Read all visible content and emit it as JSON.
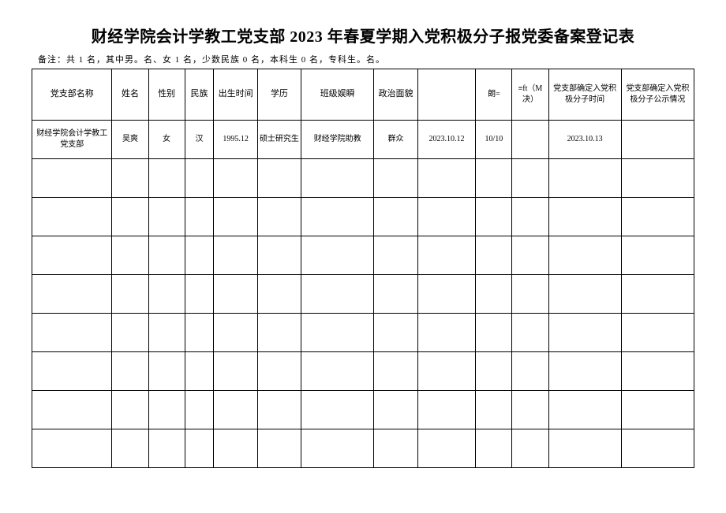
{
  "title": "财经学院会计学教工党支部 2023 年春夏学期入党积极分子报党委备案登记表",
  "note": "备注：共 1 名，其中男。名、女 1 名，少数民族 0 名，本科生 0 名，专科生。名。",
  "headers": {
    "branch": "党支部名称",
    "name": "姓名",
    "sex": "性别",
    "ethnic": "民族",
    "birth": "出生时间",
    "edu": "学历",
    "class": "班级娱瞬",
    "politics": "政治面貌",
    "col9": "",
    "lang": "朗=",
    "ft": "≡ft（M决）",
    "confirmTime": "党支部确定入党积极分子时间",
    "publicity": "党支部确定入党积极分子公示情况"
  },
  "row1": {
    "branch": "财经学院会计学教工党支部",
    "name": "吴爽",
    "sex": "女",
    "ethnic": "汉",
    "birth": "1995.12",
    "edu": "硕士研究生",
    "class": "财经学院助教",
    "politics": "群众",
    "col9": "2023.10.12",
    "lang": "10/10",
    "ft": "",
    "confirmTime": "2023.10.13",
    "publicity": ""
  }
}
